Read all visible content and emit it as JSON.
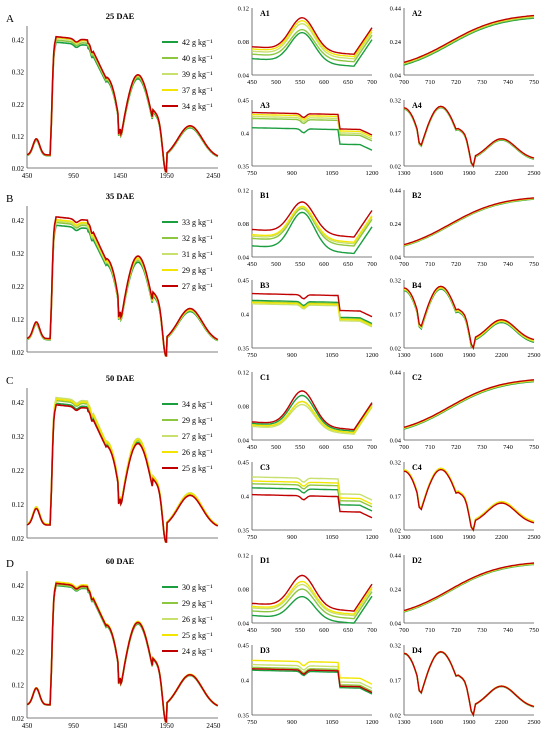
{
  "colors": [
    "#1a9e3f",
    "#8dc63f",
    "#c8e06e",
    "#f2e600",
    "#c00000"
  ],
  "chart_data": [
    {
      "type": "line",
      "letter": "A",
      "title": "25 DAE",
      "series": [
        "42 g kg⁻¹",
        "40 g kg⁻¹",
        "39 g kg⁻¹",
        "37 g kg⁻¹",
        "34 g kg⁻¹"
      ],
      "main": {
        "xlim": [
          450,
          2500
        ],
        "xticks": [
          "450",
          "950",
          "1450",
          "1950",
          "2450"
        ],
        "ylim": [
          0.02,
          0.45
        ],
        "yticks": [
          "0.02",
          "0.12",
          "0.22",
          "0.32",
          "0.42"
        ],
        "scale": [
          0.97,
          0.985,
          1.0,
          1.005,
          1.01
        ]
      },
      "subs": [
        {
          "label": "A1",
          "xticks": [
            "450",
            "500",
            "550",
            "600",
            "650",
            "700"
          ],
          "yticks": [
            "0.04",
            "0.08",
            "0.12"
          ],
          "offsets": [
            0.062,
            0.068,
            0.072,
            0.075,
            0.078
          ],
          "amp": [
            0.04,
            0.038,
            0.042,
            0.043,
            0.044
          ]
        },
        {
          "label": "A2",
          "xticks": [
            "700",
            "710",
            "720",
            "730",
            "740",
            "750"
          ],
          "yticks": [
            "0.04",
            "0.24",
            "0.44"
          ],
          "offsets": [
            -0.01,
            -0.005,
            0.0,
            0.003,
            0.006
          ]
        },
        {
          "label": "A3",
          "xticks": [
            "750",
            "900",
            "1050",
            "1200"
          ],
          "yticks": [
            "0.35",
            "0.4",
            "0.45"
          ],
          "offsets": [
            0.408,
            0.422,
            0.425,
            0.428,
            0.431
          ]
        },
        {
          "label": "A4",
          "xticks": [
            "1300",
            "1600",
            "1900",
            "2200",
            "2500"
          ],
          "yticks": [
            "0.02",
            "0.17",
            "0.32"
          ],
          "offsets": [
            -0.004,
            -0.002,
            0.0,
            0.001,
            0.002
          ]
        }
      ]
    },
    {
      "type": "line",
      "letter": "B",
      "title": "35 DAE",
      "series": [
        "33 g kg⁻¹",
        "32 g kg⁻¹",
        "31 g kg⁻¹",
        "29 g kg⁻¹",
        "27 g kg⁻¹"
      ],
      "main": {
        "xlim": [
          450,
          2500
        ],
        "xticks": [],
        "ylim": [
          0.02,
          0.45
        ],
        "yticks": [
          "0.02",
          "0.12",
          "0.22",
          "0.32",
          "0.42"
        ],
        "scale": [
          0.95,
          0.97,
          0.98,
          0.99,
          1.01
        ]
      },
      "subs": [
        {
          "label": "B1",
          "xticks": [
            "450",
            "500",
            "550",
            "600",
            "650",
            "700"
          ],
          "yticks": [
            "0.04",
            "0.08",
            "0.12"
          ],
          "offsets": [
            0.055,
            0.065,
            0.068,
            0.07,
            0.077
          ],
          "amp": [
            0.05,
            0.045,
            0.044,
            0.043,
            0.042
          ]
        },
        {
          "label": "B2",
          "xticks": [
            "700",
            "710",
            "720",
            "730",
            "740",
            "750"
          ],
          "yticks": [
            "0.04",
            "0.24",
            "0.44"
          ],
          "offsets": [
            -0.004,
            -0.002,
            0.0,
            0.002,
            0.004
          ]
        },
        {
          "label": "B3",
          "xticks": [
            "750",
            "900",
            "1050",
            "1200"
          ],
          "yticks": [
            "0.35",
            "0.4",
            "0.45"
          ],
          "offsets": [
            0.42,
            0.418,
            0.415,
            0.417,
            0.43
          ]
        },
        {
          "label": "B4",
          "xticks": [
            "1300",
            "1600",
            "1900",
            "2200",
            "2500"
          ],
          "yticks": [
            "0.02",
            "0.17",
            "0.32"
          ],
          "offsets": [
            -0.01,
            -0.006,
            -0.004,
            -0.002,
            0.003
          ]
        }
      ]
    },
    {
      "type": "line",
      "letter": "C",
      "title": "50 DAE",
      "series": [
        "34 g kg⁻¹",
        "29 g kg⁻¹",
        "27 g kg⁻¹",
        "26 g kg⁻¹",
        "25 g kg⁻¹"
      ],
      "main": {
        "xlim": [
          450,
          2500
        ],
        "xticks": [],
        "ylim": [
          0.02,
          0.45
        ],
        "yticks": [
          "0.02",
          "0.12",
          "0.22",
          "0.32",
          "0.42"
        ],
        "scale": [
          0.98,
          1.0,
          1.02,
          1.01,
          0.97
        ]
      },
      "subs": [
        {
          "label": "C1",
          "xticks": [
            "450",
            "500",
            "550",
            "600",
            "650",
            "700"
          ],
          "yticks": [
            "0.04",
            "0.08",
            "0.12"
          ],
          "offsets": [
            0.062,
            0.06,
            0.058,
            0.06,
            0.064
          ],
          "amp": [
            0.042,
            0.036,
            0.034,
            0.036,
            0.046
          ]
        },
        {
          "label": "C2",
          "xticks": [
            "700",
            "710",
            "720",
            "730",
            "740",
            "750"
          ],
          "yticks": [
            "0.04",
            "0.44"
          ],
          "offsets": [
            -0.006,
            -0.003,
            0.0,
            0.002,
            0.005
          ]
        },
        {
          "label": "C3",
          "xticks": [
            "750",
            "900",
            "1050",
            "1200"
          ],
          "yticks": [
            "0.35",
            "0.4",
            "0.45"
          ],
          "offsets": [
            0.412,
            0.418,
            0.428,
            0.422,
            0.402
          ]
        },
        {
          "label": "C4",
          "xticks": [
            "1300",
            "1600",
            "1900",
            "2200",
            "2500"
          ],
          "yticks": [
            "0.02",
            "0.17",
            "0.32"
          ],
          "offsets": [
            0.0,
            0.002,
            0.004,
            0.003,
            -0.003
          ]
        }
      ]
    },
    {
      "type": "line",
      "letter": "D",
      "title": "60 DAE",
      "series": [
        "30 g kg⁻¹",
        "29 g kg⁻¹",
        "26 g kg⁻¹",
        "25 g kg⁻¹",
        "24 g kg⁻¹"
      ],
      "main": {
        "xlim": [
          450,
          2500
        ],
        "xticks": [
          "450",
          "950",
          "1450",
          "1950",
          "2450"
        ],
        "ylim": [
          0.02,
          0.45
        ],
        "yticks": [
          "0.02",
          "0.12",
          "0.22",
          "0.32",
          "0.42"
        ],
        "scale": [
          0.985,
          0.99,
          1.0,
          1.01,
          1.0
        ]
      },
      "subs": [
        {
          "label": "D1",
          "xticks": [
            "450",
            "500",
            "550",
            "600",
            "650",
            "700"
          ],
          "yticks": [
            "0.04",
            "0.08",
            "0.12"
          ],
          "offsets": [
            0.05,
            0.056,
            0.06,
            0.062,
            0.066
          ],
          "amp": [
            0.03,
            0.034,
            0.036,
            0.038,
            0.042
          ]
        },
        {
          "label": "D2",
          "xticks": [
            "700",
            "710",
            "720",
            "730",
            "740",
            "750"
          ],
          "yticks": [
            "0.04",
            "0.24",
            "0.44"
          ],
          "offsets": [
            -0.005,
            -0.003,
            0.0,
            0.002,
            0.004
          ]
        },
        {
          "label": "D3",
          "xticks": [
            "750",
            "900",
            "1050",
            "1200"
          ],
          "yticks": [
            "0.35",
            "0.4",
            "0.45"
          ],
          "offsets": [
            0.414,
            0.418,
            0.422,
            0.428,
            0.416
          ]
        },
        {
          "label": "D4",
          "xticks": [
            "1300",
            "1600",
            "1900",
            "2200",
            "2500"
          ],
          "yticks": [
            "0.02",
            "0.17",
            "0.32"
          ],
          "offsets": [
            0.0,
            0.001,
            0.002,
            0.003,
            0.002
          ]
        }
      ]
    }
  ]
}
